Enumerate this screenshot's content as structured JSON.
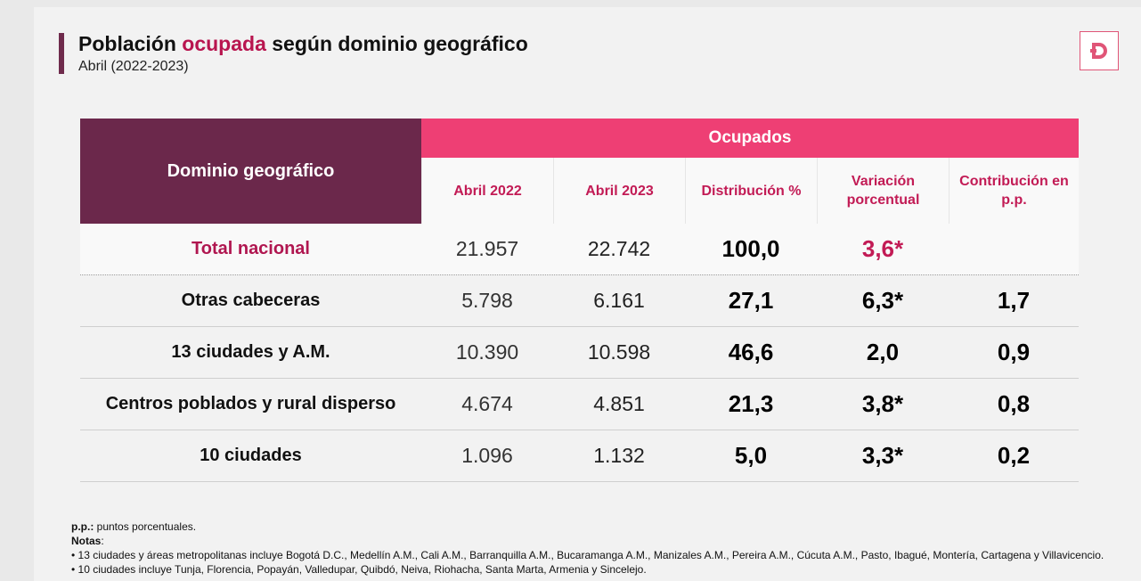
{
  "header": {
    "title_pre": "Población ",
    "title_highlight": "ocupada",
    "title_post": " según dominio geográfico",
    "subtitle": "Abril (2022-2023)"
  },
  "colors": {
    "accent_dark": "#6b284b",
    "accent_pink": "#ee3f74",
    "highlight_text": "#b8154f"
  },
  "logo": {
    "icon": "dane-d-logo-icon"
  },
  "table": {
    "row_header": "Dominio geográfico",
    "group_header": "Ocupados",
    "columns": [
      "Abril 2022",
      "Abril 2023",
      "Distribución %",
      "Variación porcentual",
      "Contribución en p.p."
    ],
    "rows": [
      {
        "name": "Total nacional",
        "a2022": "21.957",
        "a2023": "22.742",
        "dist": "100,0",
        "var": "3,6*",
        "contrib": ""
      },
      {
        "name": "Otras cabeceras",
        "a2022": "5.798",
        "a2023": "6.161",
        "dist": "27,1",
        "var": "6,3*",
        "contrib": "1,7"
      },
      {
        "name": "13 ciudades y A.M.",
        "a2022": "10.390",
        "a2023": "10.598",
        "dist": "46,6",
        "var": "2,0",
        "contrib": "0,9"
      },
      {
        "name": "Centros poblados y rural disperso",
        "a2022": "4.674",
        "a2023": "4.851",
        "dist": "21,3",
        "var": "3,8*",
        "contrib": "0,8"
      },
      {
        "name": "10 ciudades",
        "a2022": "1.096",
        "a2023": "1.132",
        "dist": "5,0",
        "var": "3,3*",
        "contrib": "0,2"
      }
    ]
  },
  "notes": {
    "pp_label": "p.p.:",
    "pp_text": " puntos porcentuales.",
    "notes_label": "Notas",
    "notes_colon": ":",
    "note1": "• 13 ciudades y áreas metropolitanas incluye Bogotá D.C., Medellín A.M., Cali A.M., Barranquilla A.M., Bucaramanga A.M., Manizales A.M., Pereira A.M., Cúcuta A.M., Pasto, Ibagué, Montería, Cartagena y Villavicencio.",
    "note2": "• 10 ciudades incluye Tunja, Florencia, Popayán, Valledupar, Quibdó, Neiva, Riohacha, Santa Marta, Armenia y Sincelejo."
  }
}
